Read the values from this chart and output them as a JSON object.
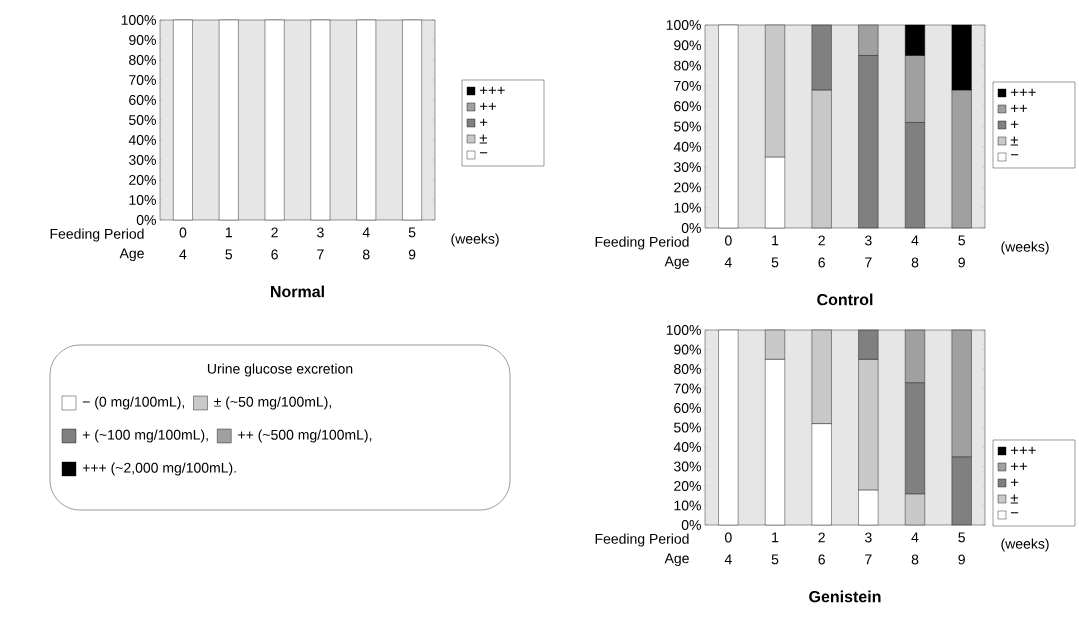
{
  "chart_data": [
    {
      "type": "bar",
      "stacked": true,
      "title": "Normal",
      "xlabel": "(weeks)",
      "legend": "right",
      "categories": [
        "0",
        "1",
        "2",
        "3",
        "4",
        "5"
      ],
      "series": [
        {
          "name": "−",
          "color": "#ffffff",
          "values": [
            100,
            100,
            100,
            100,
            100,
            100
          ]
        },
        {
          "name": "±",
          "color": "#c8c8c8",
          "values": [
            null,
            null,
            null,
            null,
            null,
            null
          ]
        },
        {
          "name": "+",
          "color": "#808080",
          "values": [
            null,
            null,
            null,
            null,
            null,
            null
          ]
        },
        {
          "name": "++",
          "color": "#a0a0a0",
          "values": [
            null,
            null,
            null,
            null,
            null,
            null
          ]
        },
        {
          "name": "+++",
          "color": "#000000",
          "values": [
            null,
            null,
            null,
            null,
            null,
            null
          ]
        }
      ],
      "ylim": [
        0,
        100
      ],
      "yticks": [
        {
          "value": 0,
          "label": "0%"
        },
        {
          "value": 10,
          "label": "10%"
        },
        {
          "value": 20,
          "label": "20%"
        },
        {
          "value": 30,
          "label": "30%"
        },
        {
          "value": 40,
          "label": "40%"
        },
        {
          "value": 50,
          "label": "50%"
        },
        {
          "value": 60,
          "label": "60%"
        },
        {
          "value": 70,
          "label": "70%"
        },
        {
          "value": 80,
          "label": "80%"
        },
        {
          "value": 90,
          "label": "90%"
        },
        {
          "value": 100,
          "label": "100%"
        }
      ],
      "annotations": [
        "Feeding Period",
        "Age",
        "4",
        "5",
        "6",
        "7",
        "8",
        "9"
      ]
    },
    {
      "type": "bar",
      "stacked": true,
      "title": "Control",
      "xlabel": "(weeks)",
      "legend": "right",
      "categories": [
        "0",
        "1",
        "2",
        "3",
        "4",
        "5"
      ],
      "series": [
        {
          "name": "−",
          "color": "#ffffff",
          "values": [
            100,
            35,
            null,
            null,
            null,
            null
          ]
        },
        {
          "name": "±",
          "color": "#c8c8c8",
          "values": [
            null,
            65,
            68,
            null,
            null,
            null
          ]
        },
        {
          "name": "+",
          "color": "#808080",
          "values": [
            null,
            null,
            32,
            85,
            52,
            null
          ]
        },
        {
          "name": "++",
          "color": "#a0a0a0",
          "values": [
            null,
            null,
            null,
            15,
            33,
            68
          ]
        },
        {
          "name": "+++",
          "color": "#000000",
          "values": [
            null,
            null,
            null,
            null,
            15,
            32
          ]
        }
      ],
      "ylim": [
        0,
        100
      ],
      "yticks": [
        {
          "value": 0,
          "label": "0%"
        },
        {
          "value": 10,
          "label": "10%"
        },
        {
          "value": 20,
          "label": "20%"
        },
        {
          "value": 30,
          "label": "30%"
        },
        {
          "value": 40,
          "label": "40%"
        },
        {
          "value": 50,
          "label": "50%"
        },
        {
          "value": 60,
          "label": "60%"
        },
        {
          "value": 70,
          "label": "70%"
        },
        {
          "value": 80,
          "label": "80%"
        },
        {
          "value": 90,
          "label": "90%"
        },
        {
          "value": 100,
          "label": "100%"
        }
      ],
      "annotations": [
        "Feeding Period",
        "Age",
        "4",
        "5",
        "6",
        "7",
        "8",
        "9"
      ]
    },
    {
      "type": "other",
      "title": "Urine glucose excretion",
      "annotations": [
        "− (0 mg/100mL),",
        "± (~50 mg/100mL),",
        "+ (~100 mg/100mL),",
        "++ (~500 mg/100mL),",
        "+++ (~2,000 mg/100mL)."
      ]
    },
    {
      "type": "bar",
      "stacked": true,
      "title": "Genistein",
      "xlabel": "(weeks)",
      "legend": "right",
      "categories": [
        "0",
        "1",
        "2",
        "3",
        "4",
        "5"
      ],
      "series": [
        {
          "name": "−",
          "color": "#ffffff",
          "values": [
            100,
            85,
            52,
            18,
            null,
            null
          ]
        },
        {
          "name": "±",
          "color": "#c8c8c8",
          "values": [
            null,
            15,
            48,
            67,
            16,
            null
          ]
        },
        {
          "name": "+",
          "color": "#808080",
          "values": [
            null,
            null,
            null,
            15,
            57,
            35
          ]
        },
        {
          "name": "++",
          "color": "#a0a0a0",
          "values": [
            null,
            null,
            null,
            null,
            27,
            65
          ]
        },
        {
          "name": "+++",
          "color": "#000000",
          "values": [
            null,
            null,
            null,
            null,
            null,
            null
          ]
        }
      ],
      "ylim": [
        0,
        100
      ],
      "yticks": [
        {
          "value": 0,
          "label": "0%"
        },
        {
          "value": 10,
          "label": "10%"
        },
        {
          "value": 20,
          "label": "20%"
        },
        {
          "value": 30,
          "label": "30%"
        },
        {
          "value": 40,
          "label": "40%"
        },
        {
          "value": 50,
          "label": "50%"
        },
        {
          "value": 60,
          "label": "60%"
        },
        {
          "value": 70,
          "label": "70%"
        },
        {
          "value": 80,
          "label": "80%"
        },
        {
          "value": 90,
          "label": "90%"
        },
        {
          "value": 100,
          "label": "100%"
        }
      ],
      "annotations": [
        "Feeding Period",
        "Age",
        "4",
        "5",
        "6",
        "7",
        "8",
        "9"
      ]
    }
  ]
}
